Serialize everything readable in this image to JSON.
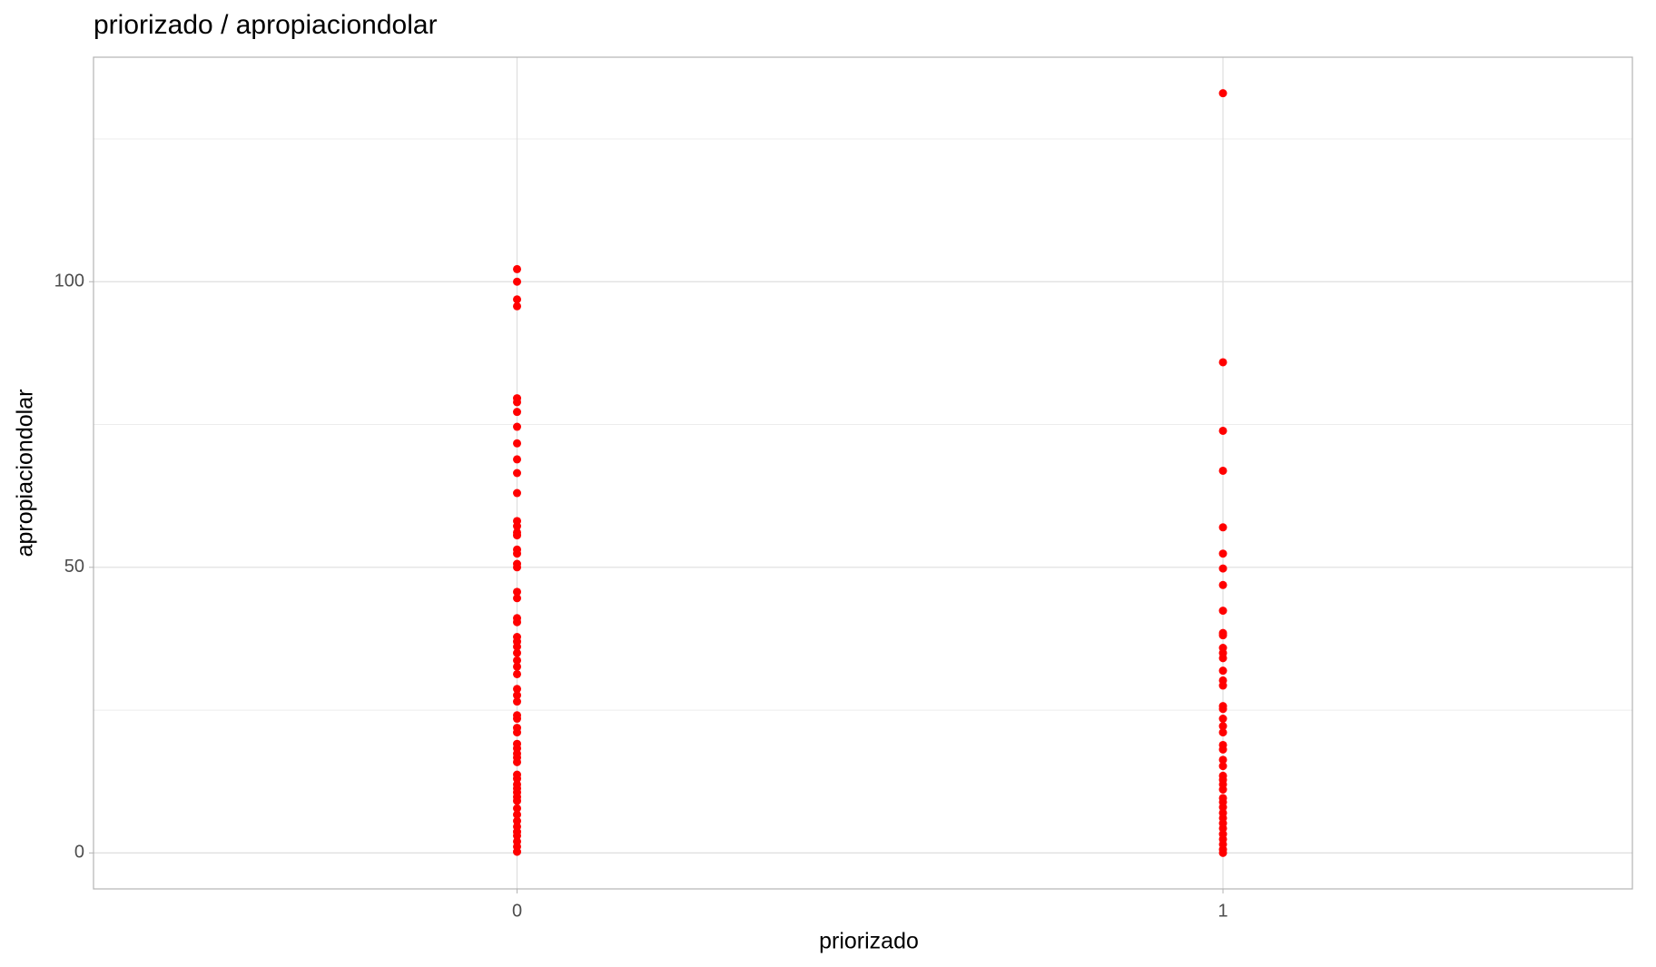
{
  "chart_data": {
    "type": "scatter",
    "title": "priorizado / apropiaciondolar",
    "x_label": "priorizado",
    "y_label": "apropiaciondolar",
    "color": "#ff0000",
    "grid": true,
    "xlim": [
      -0.6,
      1.58
    ],
    "ylim": [
      -6.3,
      139.3
    ],
    "xticks": [
      0,
      1
    ],
    "yticks": [
      0,
      50,
      100
    ],
    "minor_yticks": [
      25,
      75,
      125
    ],
    "x": [
      0,
      0,
      0,
      0,
      0,
      0,
      0,
      0,
      0,
      0,
      0,
      0,
      0,
      0,
      0,
      0,
      0,
      0,
      0,
      0,
      0,
      0,
      0,
      0,
      0,
      0,
      0,
      0,
      0,
      0,
      0,
      0,
      0,
      0,
      0,
      0,
      0,
      0,
      0,
      0,
      0,
      0,
      0,
      0,
      0,
      0,
      0,
      0,
      0,
      0,
      0,
      0,
      0,
      0,
      0,
      0,
      0,
      0,
      0,
      1,
      1,
      1,
      1,
      1,
      1,
      1,
      1,
      1,
      1,
      1,
      1,
      1,
      1,
      1,
      1,
      1,
      1,
      1,
      1,
      1,
      1,
      1,
      1,
      1,
      1,
      1,
      1,
      1,
      1,
      1,
      1,
      1,
      1,
      1,
      1,
      1,
      1,
      1,
      1,
      1,
      1
    ],
    "y": [
      102.2,
      100,
      96.9,
      95.7,
      79.6,
      78.9,
      77.2,
      74.6,
      71.7,
      68.9,
      66.5,
      63.0,
      58.1,
      57.2,
      56.1,
      55.6,
      53.1,
      52.4,
      50.6,
      50.0,
      45.7,
      44.6,
      41.1,
      40.4,
      37.8,
      37.0,
      36.1,
      35.0,
      33.7,
      32.6,
      31.3,
      28.7,
      27.6,
      26.5,
      24.1,
      23.5,
      21.9,
      21.1,
      19.1,
      18.3,
      17.4,
      16.7,
      15.9,
      13.7,
      13.0,
      12.0,
      11.3,
      10.6,
      9.8,
      9.1,
      7.8,
      6.7,
      5.6,
      4.6,
      3.7,
      3.0,
      2.0,
      1.1,
      0.2,
      133,
      85.9,
      73.9,
      66.9,
      57.0,
      52.4,
      49.8,
      46.9,
      42.4,
      38.5,
      38.1,
      35.9,
      35.0,
      34.1,
      31.9,
      30.2,
      29.3,
      25.7,
      25.2,
      23.5,
      22.2,
      21.1,
      18.9,
      18.1,
      16.3,
      15.2,
      13.5,
      12.8,
      12.0,
      11.1,
      9.6,
      8.9,
      8.0,
      7.0,
      6.1,
      5.2,
      4.3,
      3.3,
      2.4,
      1.5,
      0.6,
      0
    ]
  }
}
